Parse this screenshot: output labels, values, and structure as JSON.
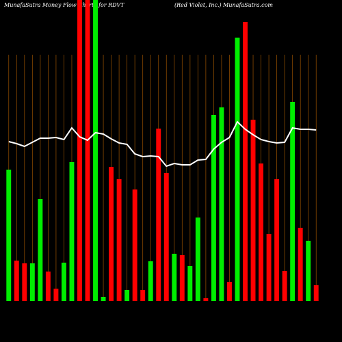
{
  "chart_data": {
    "type": "bar",
    "title": "MunafaSutra  Money Flow  Charts for RDVT",
    "subtitle": "(Red Violet,  Inc.) MunafaSutra.com",
    "categories": [
      null,
      null,
      null,
      null,
      null,
      null,
      null,
      null,
      null,
      null,
      null,
      null,
      null,
      null,
      null,
      null,
      null,
      null,
      null,
      null,
      null,
      null,
      null,
      null,
      null,
      null,
      null,
      null,
      null,
      null,
      null,
      null,
      null,
      null,
      null,
      null,
      null,
      null,
      null,
      null
    ],
    "values": [
      192,
      59,
      55,
      55,
      149,
      43,
      18,
      56,
      203,
      440,
      440,
      440,
      6,
      196,
      178,
      16,
      163,
      16,
      58,
      252,
      187,
      69,
      67,
      51,
      122,
      4,
      272,
      283,
      28,
      385,
      408,
      265,
      201,
      98,
      178,
      44,
      291,
      107,
      88,
      23
    ],
    "colors": [
      "#00ee00",
      "#ff0000",
      "#ff0000",
      "#00ee00",
      "#00ee00",
      "#ff0000",
      "#ff0000",
      "#00ee00",
      "#00ee00",
      "#ff0000",
      "#ff0000",
      "#00ee00",
      "#00ee00",
      "#ff0000",
      "#ff0000",
      "#00ee00",
      "#ff0000",
      "#ff0000",
      "#00ee00",
      "#ff0000",
      "#ff0000",
      "#00ee00",
      "#ff0000",
      "#00ee00",
      "#00ee00",
      "#ff0000",
      "#00ee00",
      "#00ee00",
      "#ff0000",
      "#00ee00",
      "#ff0000",
      "#ff0000",
      "#ff0000",
      "#ff0000",
      "#ff0000",
      "#ff0000",
      "#00ee00",
      "#ff0000",
      "#00ee00",
      "#ff0000"
    ],
    "line": {
      "color": "#ffffff",
      "values": [
        233,
        230,
        226,
        232,
        238,
        238,
        239,
        236,
        253,
        240,
        235,
        246,
        244,
        237,
        231,
        229,
        215,
        211,
        212,
        211,
        197,
        201,
        199,
        199,
        206,
        207,
        222,
        232,
        239,
        262,
        251,
        243,
        236,
        233,
        231,
        232,
        253,
        251,
        251,
        250
      ]
    },
    "grid_color": "#8b4a00",
    "ylim": [
      0,
      440
    ]
  }
}
